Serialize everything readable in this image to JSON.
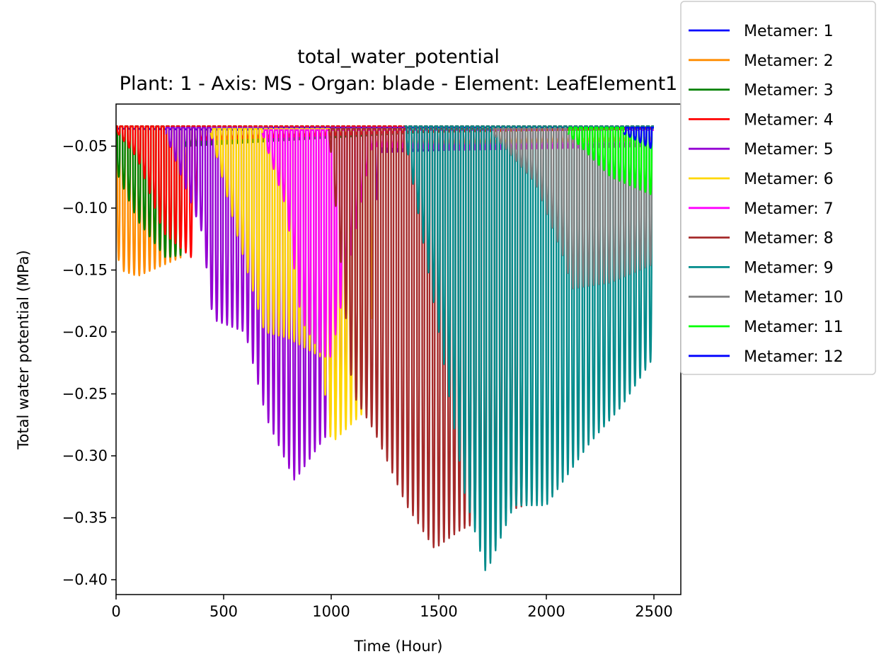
{
  "chart_data": {
    "type": "line",
    "title": "total_water_potential",
    "subtitle": "Plant: 1 - Axis: MS - Organ: blade - Element: LeafElement1",
    "xlabel": "Time (Hour)",
    "ylabel": "Total water potential (MPa)",
    "xlim": [
      0,
      2625
    ],
    "ylim": [
      -0.412,
      -0.016
    ],
    "xticks": [
      0,
      500,
      1000,
      1500,
      2000,
      2500
    ],
    "xtick_labels": [
      "0",
      "500",
      "1000",
      "1500",
      "2000",
      "2500"
    ],
    "yticks": [
      -0.05,
      -0.1,
      -0.15,
      -0.2,
      -0.25,
      -0.3,
      -0.35,
      -0.4
    ],
    "ytick_labels": [
      "−0.05",
      "−0.10",
      "−0.15",
      "−0.20",
      "−0.25",
      "−0.30",
      "−0.35",
      "−0.40"
    ],
    "grid": false,
    "legend_position": "outside-top-right",
    "series": [
      {
        "name": "Metamer: 1",
        "color": "#0000ff",
        "t_start": 0,
        "t_end": 2500,
        "base": -0.034,
        "env": [
          [
            0,
            -0.036
          ],
          [
            600,
            -0.037
          ],
          [
            750,
            -0.035
          ],
          [
            2500,
            -0.035
          ]
        ]
      },
      {
        "name": "Metamer: 2",
        "color": "#ff8c00",
        "t_start": 0,
        "t_end": 2500,
        "base": -0.034,
        "env": [
          [
            0,
            -0.13
          ],
          [
            20,
            -0.15
          ],
          [
            100,
            -0.155
          ],
          [
            300,
            -0.14
          ],
          [
            330,
            -0.05
          ],
          [
            1000,
            -0.04
          ],
          [
            2500,
            -0.036
          ]
        ]
      },
      {
        "name": "Metamer: 3",
        "color": "#008000",
        "t_start": 0,
        "t_end": 2500,
        "base": -0.034,
        "env": [
          [
            0,
            -0.07
          ],
          [
            100,
            -0.11
          ],
          [
            230,
            -0.14
          ],
          [
            300,
            -0.138
          ],
          [
            320,
            -0.05
          ],
          [
            1500,
            -0.038
          ],
          [
            2500,
            -0.036
          ]
        ]
      },
      {
        "name": "Metamer: 4",
        "color": "#ff0000",
        "t_start": 0,
        "t_end": 2500,
        "base": -0.034,
        "env": [
          [
            0,
            -0.038
          ],
          [
            100,
            -0.06
          ],
          [
            220,
            -0.12
          ],
          [
            350,
            -0.14
          ],
          [
            390,
            -0.045
          ],
          [
            1500,
            -0.038
          ],
          [
            2500,
            -0.036
          ]
        ]
      },
      {
        "name": "Metamer: 5",
        "color": "#9400d3",
        "t_start": 230,
        "t_end": 1700,
        "base": -0.035,
        "env": [
          [
            230,
            -0.04
          ],
          [
            400,
            -0.12
          ],
          [
            450,
            -0.19
          ],
          [
            600,
            -0.2
          ],
          [
            700,
            -0.27
          ],
          [
            830,
            -0.32
          ],
          [
            950,
            -0.29
          ],
          [
            1080,
            -0.26
          ],
          [
            1170,
            -0.26
          ],
          [
            1220,
            -0.055
          ],
          [
            1700,
            -0.052
          ]
        ]
      },
      {
        "name": "Metamer: 6",
        "color": "#ffd700",
        "t_start": 440,
        "t_end": 2500,
        "base": -0.036,
        "env": [
          [
            440,
            -0.04
          ],
          [
            560,
            -0.12
          ],
          [
            690,
            -0.2
          ],
          [
            800,
            -0.205
          ],
          [
            950,
            -0.22
          ],
          [
            1000,
            -0.29
          ],
          [
            1180,
            -0.26
          ],
          [
            1200,
            -0.05
          ],
          [
            2500,
            -0.045
          ]
        ]
      },
      {
        "name": "Metamer: 7",
        "color": "#ff00ff",
        "t_start": 680,
        "t_end": 2500,
        "base": -0.037,
        "env": [
          [
            680,
            -0.04
          ],
          [
            790,
            -0.1
          ],
          [
            860,
            -0.19
          ],
          [
            960,
            -0.22
          ],
          [
            1000,
            -0.22
          ],
          [
            1190,
            -0.05
          ],
          [
            1600,
            -0.053
          ],
          [
            2500,
            -0.05
          ]
        ]
      },
      {
        "name": "Metamer: 8",
        "color": "#a52a2a",
        "t_start": 990,
        "t_end": 1900,
        "base": -0.036,
        "env": [
          [
            990,
            -0.04
          ],
          [
            1100,
            -0.25
          ],
          [
            1200,
            -0.28
          ],
          [
            1350,
            -0.34
          ],
          [
            1480,
            -0.375
          ],
          [
            1600,
            -0.36
          ],
          [
            1720,
            -0.35
          ],
          [
            1900,
            -0.34
          ]
        ]
      },
      {
        "name": "Metamer: 9",
        "color": "#008b8b",
        "t_start": 1340,
        "t_end": 2500,
        "base": -0.034,
        "env": [
          [
            1340,
            -0.04
          ],
          [
            1500,
            -0.2
          ],
          [
            1620,
            -0.33
          ],
          [
            1720,
            -0.395
          ],
          [
            1850,
            -0.34
          ],
          [
            2000,
            -0.34
          ],
          [
            2200,
            -0.29
          ],
          [
            2350,
            -0.26
          ],
          [
            2500,
            -0.22
          ]
        ]
      },
      {
        "name": "Metamer: 10",
        "color": "#808080",
        "t_start": 1750,
        "t_end": 2500,
        "base": -0.036,
        "env": [
          [
            1750,
            -0.04
          ],
          [
            1950,
            -0.08
          ],
          [
            2080,
            -0.14
          ],
          [
            2120,
            -0.165
          ],
          [
            2300,
            -0.16
          ],
          [
            2500,
            -0.145
          ]
        ]
      },
      {
        "name": "Metamer: 11",
        "color": "#00ff00",
        "t_start": 2100,
        "t_end": 2500,
        "base": -0.035,
        "env": [
          [
            2100,
            -0.04
          ],
          [
            2300,
            -0.075
          ],
          [
            2500,
            -0.09
          ]
        ]
      },
      {
        "name": "Metamer: 12",
        "color": "#0000ff",
        "t_start": 2360,
        "t_end": 2500,
        "base": -0.035,
        "env": [
          [
            2360,
            -0.04
          ],
          [
            2500,
            -0.053
          ]
        ]
      }
    ]
  }
}
